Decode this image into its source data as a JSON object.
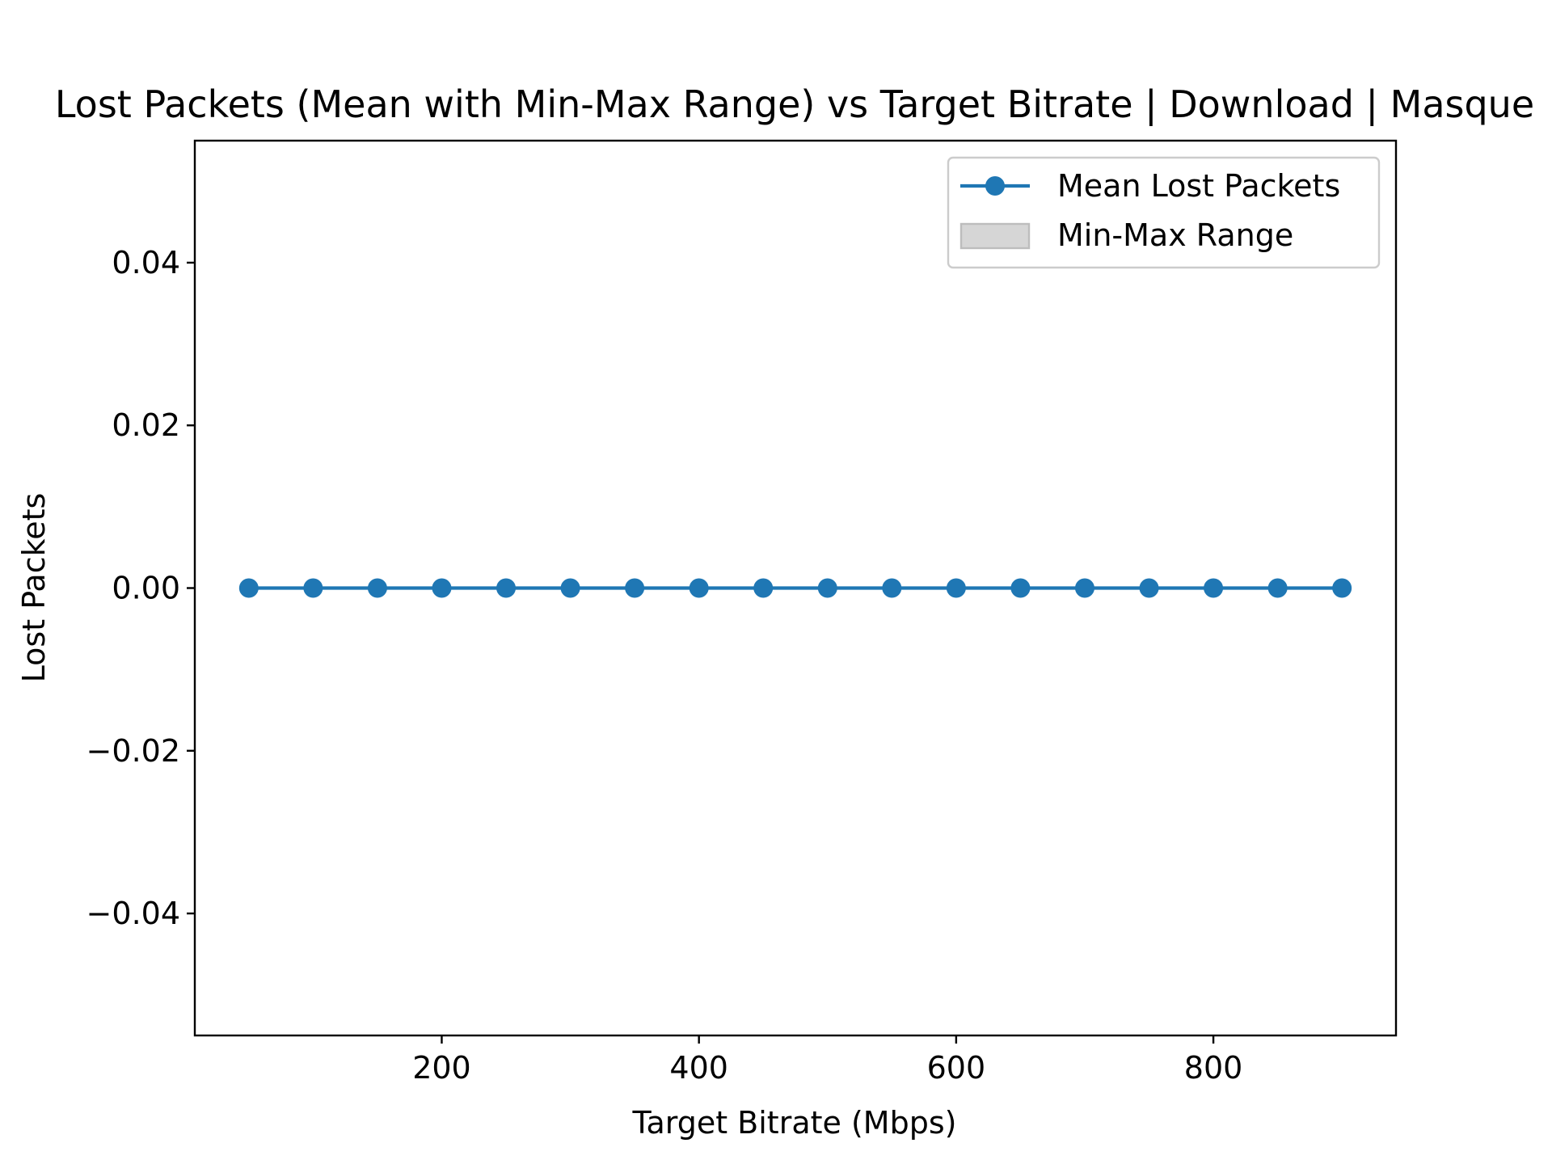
{
  "chart_data": {
    "type": "line",
    "title": "Lost Packets (Mean with Min-Max Range) vs Target Bitrate | Download | Masque",
    "xlabel": "Target Bitrate (Mbps)",
    "ylabel": "Lost Packets",
    "xlim": [
      8,
      942
    ],
    "ylim": [
      -0.055,
      0.055
    ],
    "x_ticks": [
      200,
      400,
      600,
      800
    ],
    "x_tick_labels": [
      "200",
      "400",
      "600",
      "800"
    ],
    "y_ticks": [
      0.04,
      0.02,
      0.0,
      -0.02,
      -0.04
    ],
    "y_tick_labels": [
      "0.04",
      "0.02",
      "0.00",
      "−0.02",
      "−0.04"
    ],
    "grid": false,
    "legend_position": "top-right",
    "series": [
      {
        "name": "Mean Lost Packets",
        "color": "#1f77b4",
        "marker": "circle",
        "x": [
          50,
          100,
          150,
          200,
          250,
          300,
          350,
          400,
          450,
          500,
          550,
          600,
          650,
          700,
          750,
          800,
          850,
          900
        ],
        "y": [
          0,
          0,
          0,
          0,
          0,
          0,
          0,
          0,
          0,
          0,
          0,
          0,
          0,
          0,
          0,
          0,
          0,
          0
        ]
      }
    ],
    "range_band": {
      "name": "Min-Max Range",
      "color": "#d6d6d6",
      "edge_color": "#bdbdbd",
      "x": [
        50,
        100,
        150,
        200,
        250,
        300,
        350,
        400,
        450,
        500,
        550,
        600,
        650,
        700,
        750,
        800,
        850,
        900
      ],
      "min": [
        0,
        0,
        0,
        0,
        0,
        0,
        0,
        0,
        0,
        0,
        0,
        0,
        0,
        0,
        0,
        0,
        0,
        0
      ],
      "max": [
        0,
        0,
        0,
        0,
        0,
        0,
        0,
        0,
        0,
        0,
        0,
        0,
        0,
        0,
        0,
        0,
        0,
        0
      ]
    }
  }
}
